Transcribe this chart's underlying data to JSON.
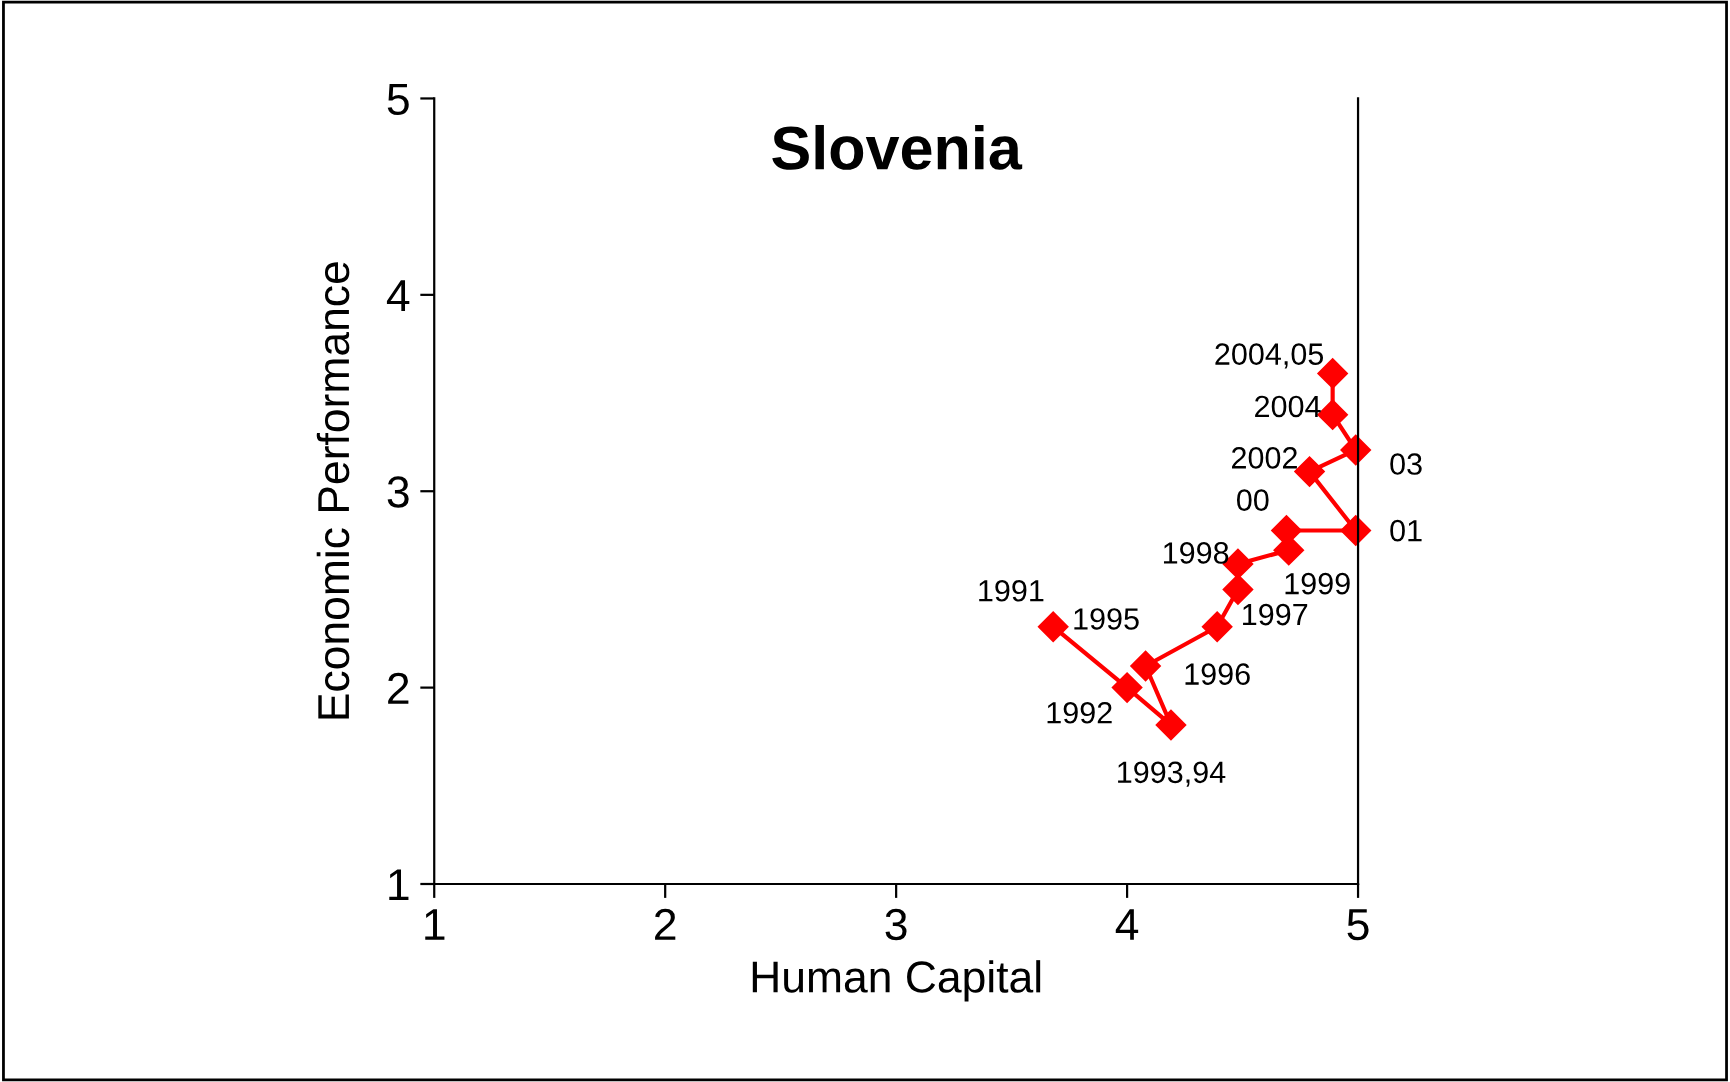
{
  "chart_data": {
    "type": "line",
    "title": "Slovenia",
    "xlabel": "Human Capital",
    "ylabel": "Economic Performance",
    "xlim": [
      1,
      5
    ],
    "xticks": [
      1,
      2,
      3,
      4,
      5
    ],
    "ylim": [
      1,
      5
    ],
    "yticks": [
      1,
      2,
      3,
      4,
      5
    ],
    "grid": false,
    "marker": "diamond",
    "line_style": "solid",
    "series": [
      {
        "color": "#ff0000",
        "x": [
          3.68,
          4.0,
          4.19,
          4.08,
          4.39,
          4.48,
          4.48,
          4.7,
          4.69,
          4.99,
          4.79,
          4.99,
          4.89,
          4.89
        ],
        "values": [
          2.31,
          2.0,
          1.81,
          2.11,
          2.31,
          2.5,
          2.63,
          2.7,
          2.8,
          2.8,
          3.1,
          3.21,
          3.39,
          3.6
        ]
      }
    ],
    "annotations": [
      {
        "text": "1991",
        "x": 3.68,
        "y": 2.31
      },
      {
        "text": "1992",
        "x": 4.0,
        "y": 2.0
      },
      {
        "text": "1993,94",
        "x": 4.19,
        "y": 1.81
      },
      {
        "text": "1995",
        "x": 4.08,
        "y": 2.11
      },
      {
        "text": "1996",
        "x": 4.39,
        "y": 2.31
      },
      {
        "text": "1997",
        "x": 4.48,
        "y": 2.5
      },
      {
        "text": "1998",
        "x": 4.48,
        "y": 2.63
      },
      {
        "text": "1999",
        "x": 4.7,
        "y": 2.7
      },
      {
        "text": "00",
        "x": 4.69,
        "y": 2.8
      },
      {
        "text": "01",
        "x": 4.99,
        "y": 2.8
      },
      {
        "text": "2002",
        "x": 4.79,
        "y": 3.1
      },
      {
        "text": "03",
        "x": 4.99,
        "y": 3.21
      },
      {
        "text": "2004",
        "x": 4.89,
        "y": 3.39
      },
      {
        "text": "2004,05",
        "x": 4.89,
        "y": 3.6
      }
    ]
  }
}
